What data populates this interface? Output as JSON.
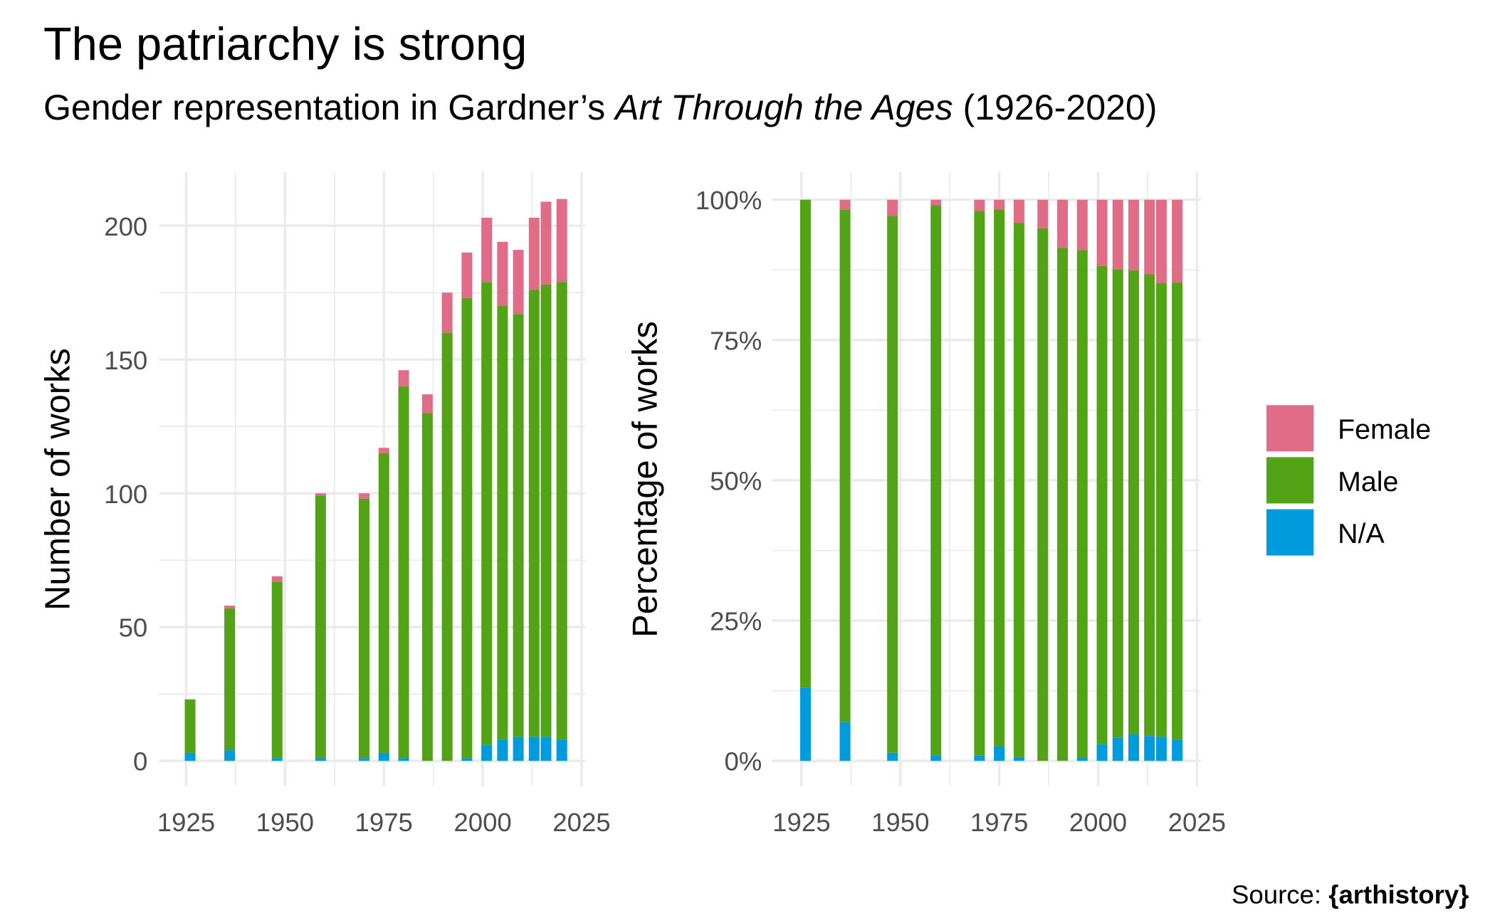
{
  "title": "The patriarchy is strong",
  "subtitle": {
    "before": "Gender representation in Gardner’s ",
    "italic": "Art Through the Ages",
    "after": " (1926-2020)"
  },
  "caption": {
    "prefix": "Source: ",
    "bold": "{arthistory}"
  },
  "colors": {
    "Female": "#e06c87",
    "Male": "#52a315",
    "N/A": "#009bdd",
    "grid": "#ebebeb"
  },
  "legend": {
    "position": "right",
    "items": [
      "Female",
      "Male",
      "N/A"
    ]
  },
  "chart_data": [
    {
      "type": "bar",
      "stacked": true,
      "ylabel": "Number of works",
      "xlabel": "",
      "x": [
        1926,
        1936,
        1948,
        1959,
        1970,
        1975,
        1980,
        1986,
        1991,
        1996,
        2001,
        2005,
        2009,
        2013,
        2016,
        2020
      ],
      "series": [
        {
          "name": "N/A",
          "values": [
            3,
            4,
            1,
            1,
            1,
            3,
            1,
            0,
            0,
            1,
            6,
            8,
            9,
            9,
            9,
            8
          ]
        },
        {
          "name": "Male",
          "values": [
            20,
            53,
            66,
            98,
            97,
            112,
            139,
            130,
            160,
            172,
            173,
            162,
            158,
            167,
            169,
            171
          ]
        },
        {
          "name": "Female",
          "values": [
            0,
            1,
            2,
            1,
            2,
            2,
            6,
            7,
            15,
            17,
            24,
            24,
            24,
            27,
            31,
            31
          ]
        }
      ],
      "xlim": [
        1920,
        2025
      ],
      "ylim": [
        0,
        210
      ],
      "xticks": [
        "1925",
        "1950",
        "1975",
        "2000",
        "2025"
      ],
      "yticks": [
        "0",
        "50",
        "100",
        "150",
        "200"
      ]
    },
    {
      "type": "bar",
      "stacked": true,
      "normalized": true,
      "ylabel": "Percentage of works",
      "xlabel": "",
      "x": [
        1926,
        1936,
        1948,
        1959,
        1970,
        1975,
        1980,
        1986,
        1991,
        1996,
        2001,
        2005,
        2009,
        2013,
        2016,
        2020
      ],
      "series_source": "same counts as panel 1, shown as share of total",
      "xlim": [
        1920,
        2025
      ],
      "ylim": [
        0,
        100
      ],
      "xticks": [
        "1925",
        "1950",
        "1975",
        "2000",
        "2025"
      ],
      "yticks": [
        "0%",
        "25%",
        "50%",
        "75%",
        "100%"
      ]
    }
  ]
}
